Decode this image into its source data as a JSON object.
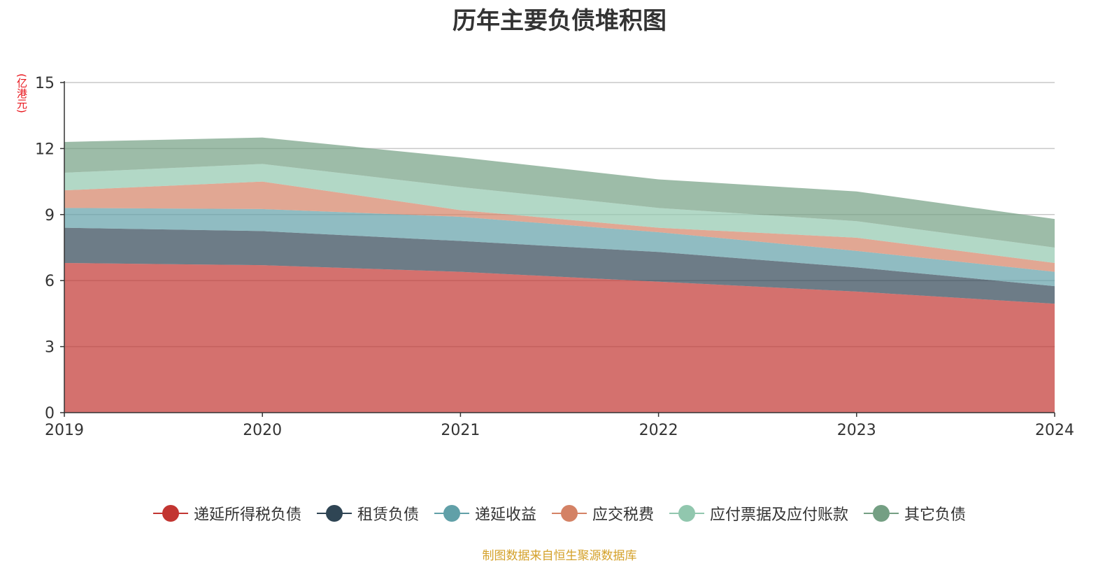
{
  "chart_data": {
    "type": "area",
    "stacked": true,
    "title": "历年主要负债堆积图",
    "unit_label": "(亿港元)",
    "categories": [
      "2019",
      "2020",
      "2021",
      "2022",
      "2023",
      "2024"
    ],
    "ylim": [
      0,
      15
    ],
    "yticks": [
      0,
      3,
      6,
      9,
      12,
      15
    ],
    "grid": true,
    "legend_position": "bottom",
    "series": [
      {
        "name": "递延所得税负债",
        "color": "#c23531",
        "values": [
          6.8,
          6.7,
          6.4,
          5.95,
          5.5,
          4.95
        ]
      },
      {
        "name": "租赁负债",
        "color": "#2f4554",
        "values": [
          1.6,
          1.55,
          1.4,
          1.35,
          1.1,
          0.8
        ]
      },
      {
        "name": "递延收益",
        "color": "#61a0a8",
        "values": [
          0.9,
          1.0,
          1.1,
          0.9,
          0.75,
          0.65
        ]
      },
      {
        "name": "应交税费",
        "color": "#d48265",
        "values": [
          0.8,
          1.25,
          0.3,
          0.2,
          0.6,
          0.4
        ]
      },
      {
        "name": "应付票据及应付账款",
        "color": "#91c7ae",
        "values": [
          0.8,
          0.8,
          1.05,
          0.9,
          0.75,
          0.7
        ]
      },
      {
        "name": "其它负债",
        "color": "#749f83",
        "values": [
          1.4,
          1.2,
          1.35,
          1.3,
          1.35,
          1.3
        ]
      }
    ]
  },
  "footer": {
    "source": "制图数据来自恒生聚源数据库"
  }
}
